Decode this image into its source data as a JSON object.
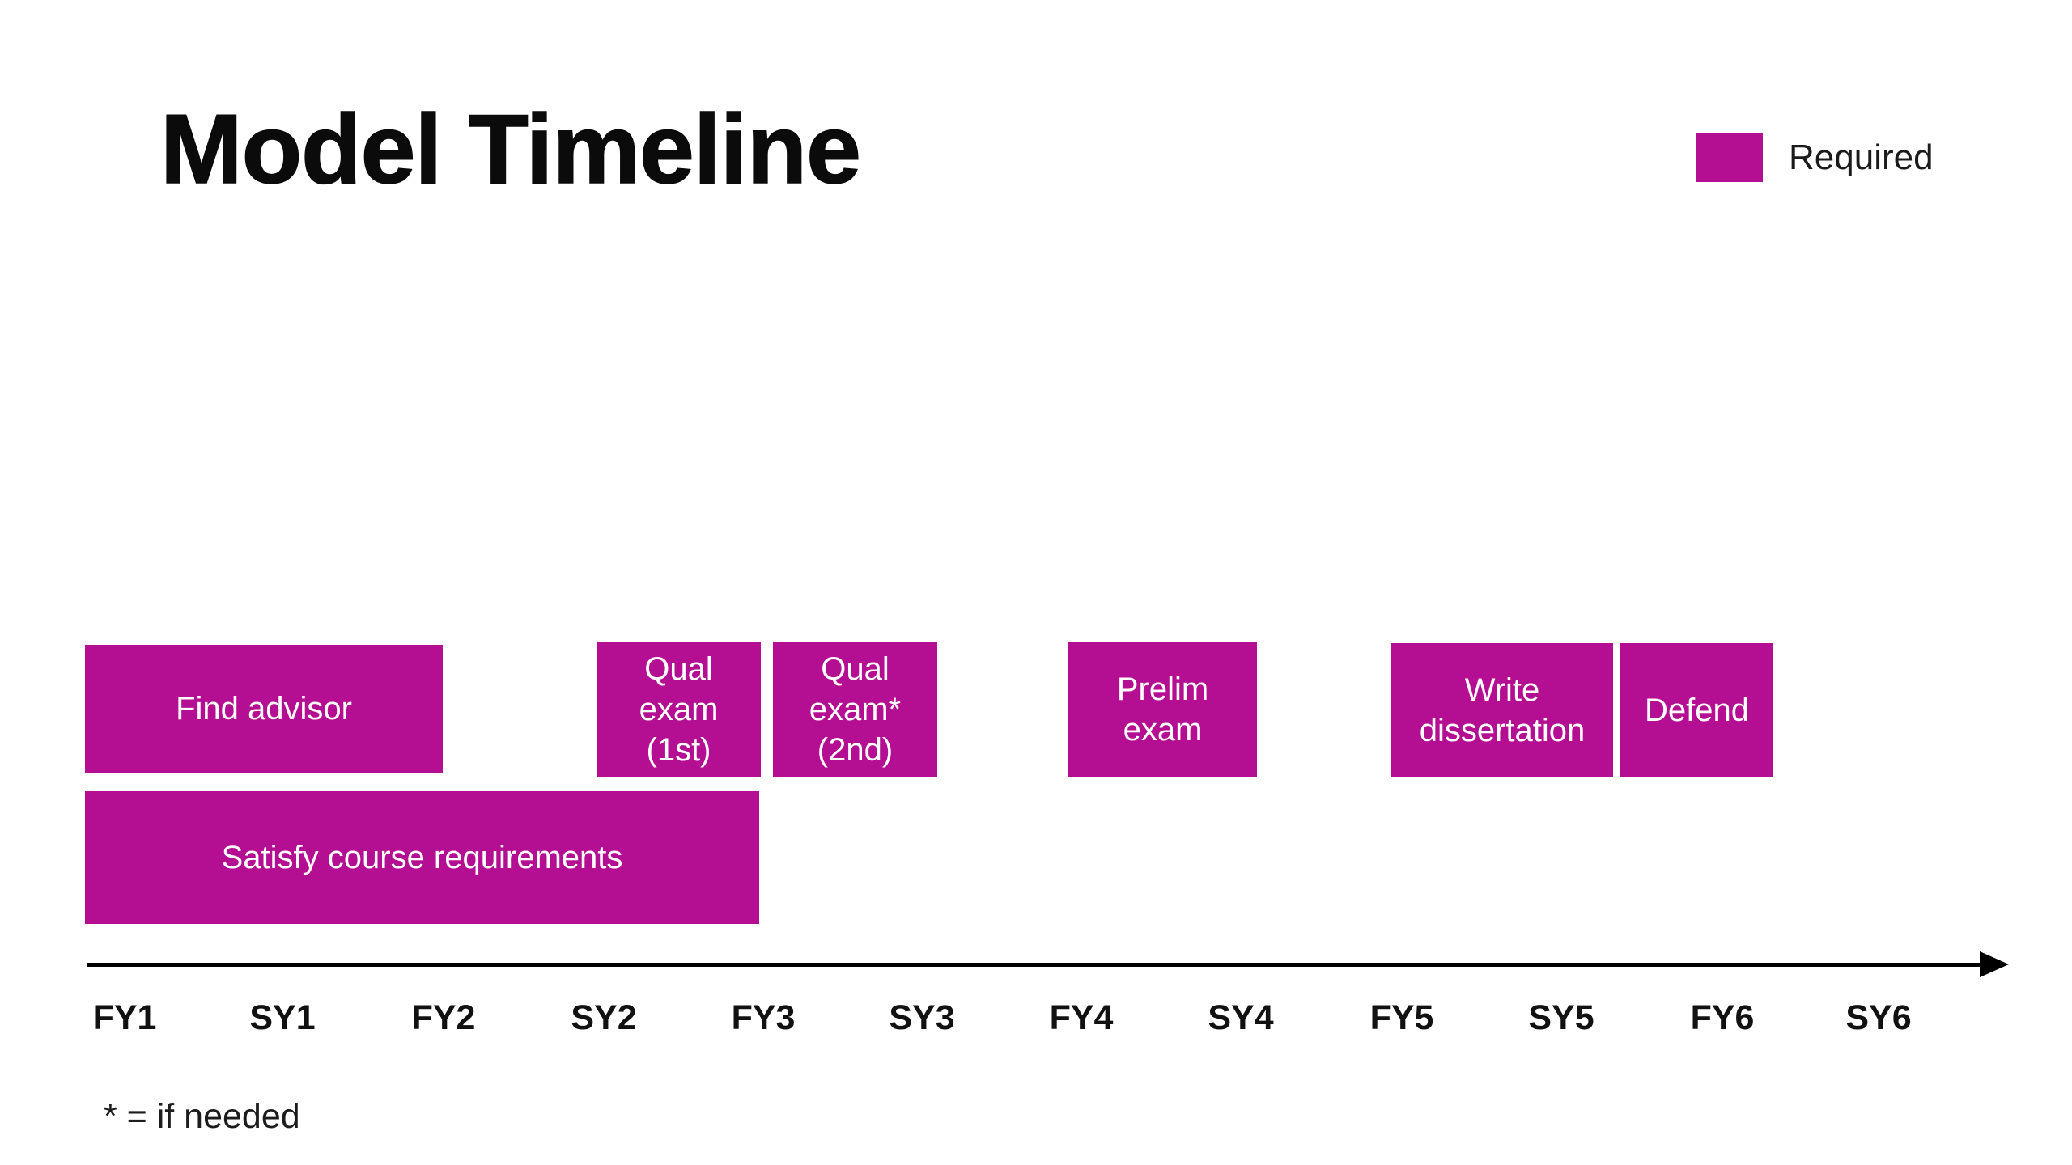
{
  "title": "Model Timeline",
  "legend": {
    "label": "Required",
    "color": "#B40E92"
  },
  "boxes": [
    {
      "id": "find-advisor",
      "label": "Find advisor"
    },
    {
      "id": "qual-exam-1st",
      "label": "Qual\nexam\n(1st)"
    },
    {
      "id": "qual-exam-2nd",
      "label": "Qual\nexam*\n(2nd)"
    },
    {
      "id": "prelim-exam",
      "label": "Prelim\nexam"
    },
    {
      "id": "write-dissertation",
      "label": "Write\ndissertation"
    },
    {
      "id": "defend",
      "label": "Defend"
    },
    {
      "id": "satisfy-course-requirements",
      "label": "Satisfy course requirements"
    }
  ],
  "axis": {
    "labels": [
      "FY1",
      "SY1",
      "FY2",
      "SY2",
      "FY3",
      "SY3",
      "FY4",
      "SY4",
      "FY5",
      "SY5",
      "FY6",
      "SY6"
    ]
  },
  "footnote": "* = if needed",
  "colors": {
    "box_fill": "#B40E92",
    "box_text": "#ffffff",
    "axis": "#000000",
    "text": "#111111",
    "background": "#ffffff"
  }
}
